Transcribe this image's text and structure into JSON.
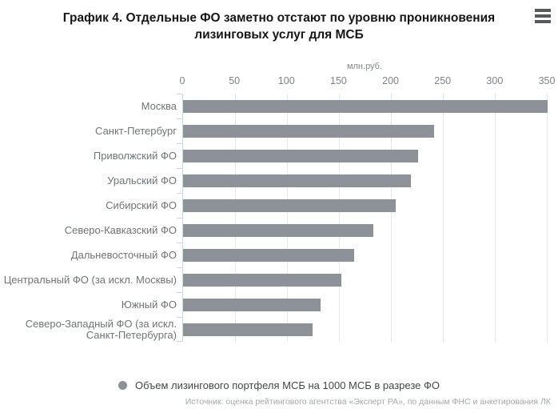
{
  "header": {
    "title": "График 4. Отдельные ФО заметно отстают по уровню проникновения лизинговых услуг для МСБ"
  },
  "chart_data": {
    "type": "bar",
    "orientation": "horizontal",
    "title": "График 4. Отдельные ФО заметно отстают по уровню проникновения лизинговых услуг для МСБ",
    "xlabel": "млн.руб.",
    "ylabel": "",
    "xlim": [
      0,
      350
    ],
    "xticks": [
      0,
      50,
      100,
      150,
      200,
      250,
      300,
      350
    ],
    "grid": true,
    "legend_position": "bottom",
    "categories": [
      "Москва",
      "Санкт-Петербург",
      "Приволжский ФО",
      "Уральский ФО",
      "Сибирский ФО",
      "Северо-Кавказский ФО",
      "Дальневосточный ФО",
      "Центральный ФО (за искл. Москвы)",
      "Южный ФО",
      "Северо-Западный ФО (за искл. Санкт-Петербурга)"
    ],
    "series": [
      {
        "name": "Объем лизингового портфеля МСБ на 1000 МСБ в разрезе ФО",
        "values": [
          350,
          241,
          226,
          219,
          204,
          183,
          164,
          152,
          132,
          124
        ]
      }
    ],
    "bar_color": "#8c9298",
    "gridline_color": "#e7e8e8",
    "axis_color": "#cbd8e1"
  },
  "legend": {
    "label": "Объем лизингового портфеля МСБ на 1000 МСБ в разрезе ФО",
    "marker_color": "#8c9298"
  },
  "footer": {
    "source": "Источник: оценка рейтингового агентства «Эксперт РА», по данным ФНС и анкетирования ЛК"
  }
}
